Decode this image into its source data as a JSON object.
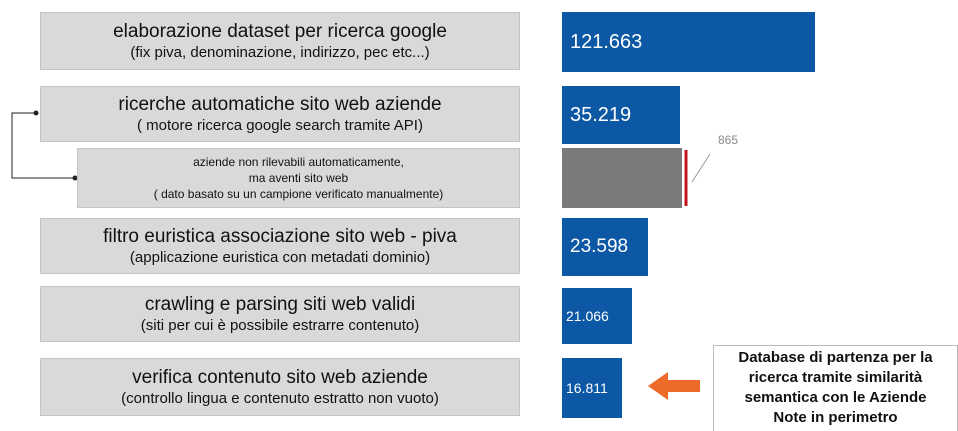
{
  "rows": [
    {
      "title": "elaborazione dataset per ricerca google",
      "subtitle": "(fix piva, denominazione, indirizzo, pec etc...)",
      "value": "121.663"
    },
    {
      "title": "ricerche automatiche sito web aziende",
      "subtitle": "( motore ricerca google search tramite API)",
      "value": "35.219"
    },
    {
      "lines": [
        "aziende non rilevabili automaticamente,",
        "ma aventi sito web",
        "( dato basato su un campione verificato manualmente)"
      ],
      "annotation": "865"
    },
    {
      "title": "filtro euristica associazione sito web - piva",
      "subtitle": "(applicazione euristica con metadati dominio)",
      "value": "23.598"
    },
    {
      "title": "crawling e parsing siti web validi",
      "subtitle": "(siti per cui è possibile estrarre contenuto)",
      "value": "21.066"
    },
    {
      "title": "verifica contenuto sito web aziende",
      "subtitle": "(controllo lingua e contenuto estratto non vuoto)",
      "value": "16.811"
    }
  ],
  "callout": [
    "Database di partenza per la",
    "ricerca tramite similarità",
    "semantica con le Aziende",
    "Note in perimetro"
  ]
}
